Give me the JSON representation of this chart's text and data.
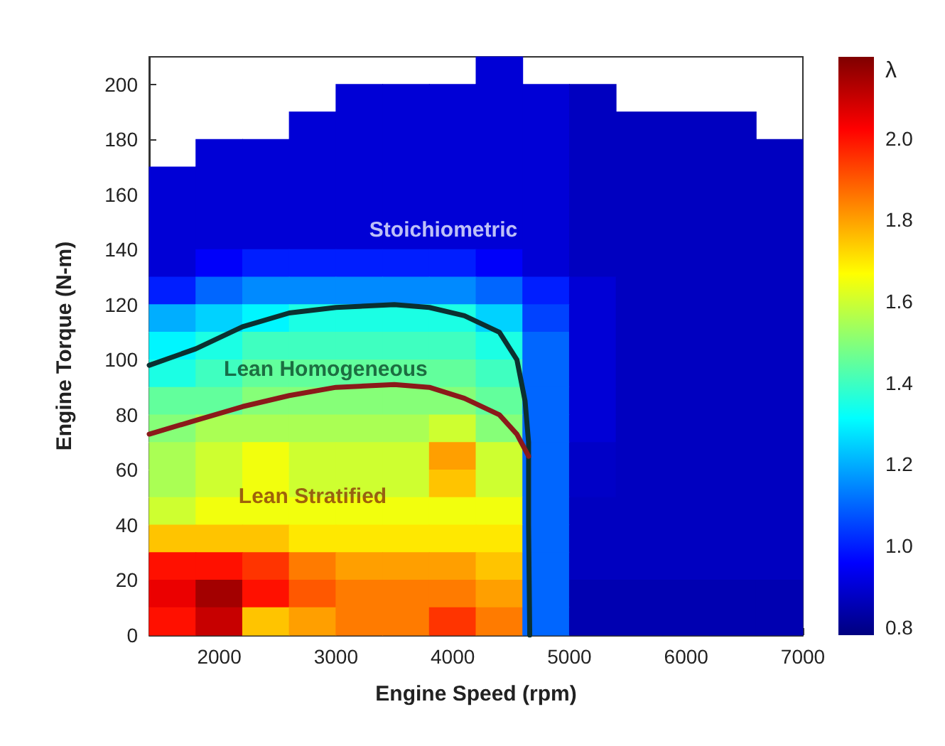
{
  "chart_data": {
    "type": "heatmap",
    "xlabel": "Engine Speed (rpm)",
    "ylabel": "Engine Torque (N-m)",
    "clabel": "λ",
    "xlim": [
      1400,
      7000
    ],
    "xticks": [
      2000,
      3000,
      4000,
      5000,
      6000,
      7000
    ],
    "ylim": [
      0,
      210
    ],
    "yticks": [
      0,
      20,
      40,
      60,
      80,
      100,
      120,
      140,
      160,
      180,
      200
    ],
    "clim": [
      0.78,
      2.2
    ],
    "cticks": [
      0.8,
      {
        "value": 1,
        "label": "1.0"
      },
      1.2,
      1.4,
      1.6,
      1.8,
      {
        "value": 2,
        "label": "2.0"
      }
    ],
    "cells": [
      [
        null,
        null,
        null,
        null,
        null,
        null,
        null,
        0.9,
        null,
        null,
        null,
        null,
        null,
        null
      ],
      [
        null,
        null,
        null,
        null,
        0.9,
        0.9,
        0.9,
        0.9,
        0.9,
        0.87,
        null,
        null,
        null,
        null
      ],
      [
        null,
        null,
        null,
        0.9,
        0.9,
        0.9,
        0.9,
        0.9,
        0.9,
        0.87,
        0.87,
        0.87,
        0.87,
        null
      ],
      [
        null,
        0.9,
        0.9,
        0.9,
        0.9,
        0.9,
        0.9,
        0.9,
        0.9,
        0.87,
        0.87,
        0.87,
        0.87,
        0.87
      ],
      [
        0.9,
        0.9,
        0.9,
        0.9,
        0.9,
        0.9,
        0.9,
        0.9,
        0.9,
        0.87,
        0.87,
        0.87,
        0.87,
        0.87
      ],
      [
        0.9,
        0.9,
        0.9,
        0.9,
        0.9,
        0.9,
        0.9,
        0.9,
        0.9,
        0.87,
        0.87,
        0.87,
        0.87,
        0.87
      ],
      [
        0.9,
        0.9,
        0.9,
        0.9,
        0.9,
        0.9,
        0.9,
        0.9,
        0.9,
        0.87,
        0.87,
        0.87,
        0.87,
        0.87
      ],
      [
        0.9,
        0.95,
        1.0,
        1.0,
        1.0,
        1.0,
        1.0,
        0.95,
        0.9,
        0.87,
        0.87,
        0.87,
        0.87,
        0.87
      ],
      [
        1.0,
        1.1,
        1.15,
        1.15,
        1.15,
        1.15,
        1.15,
        1.1,
        1.0,
        0.9,
        0.87,
        0.87,
        0.87,
        0.87
      ],
      [
        1.2,
        1.25,
        1.3,
        1.35,
        1.35,
        1.35,
        1.35,
        1.25,
        1.05,
        0.9,
        0.87,
        0.87,
        0.87,
        0.87
      ],
      [
        1.3,
        1.35,
        1.4,
        1.4,
        1.4,
        1.4,
        1.4,
        1.35,
        1.1,
        0.9,
        0.87,
        0.87,
        0.87,
        0.87
      ],
      [
        1.35,
        1.4,
        1.45,
        1.45,
        1.45,
        1.45,
        1.45,
        1.4,
        1.1,
        0.9,
        0.87,
        0.87,
        0.87,
        0.87
      ],
      [
        1.45,
        1.45,
        1.5,
        1.5,
        1.5,
        1.5,
        1.5,
        1.45,
        1.1,
        0.9,
        0.87,
        0.87,
        0.87,
        0.87
      ],
      [
        1.5,
        1.55,
        1.55,
        1.55,
        1.55,
        1.55,
        1.6,
        1.5,
        1.1,
        0.9,
        0.87,
        0.87,
        0.87,
        0.87
      ],
      [
        1.55,
        1.6,
        1.65,
        1.6,
        1.6,
        1.6,
        1.8,
        1.6,
        1.1,
        0.88,
        0.87,
        0.87,
        0.87,
        0.87
      ],
      [
        1.55,
        1.6,
        1.65,
        1.6,
        1.6,
        1.6,
        1.75,
        1.6,
        1.1,
        0.88,
        0.87,
        0.87,
        0.87,
        0.87
      ],
      [
        1.6,
        1.65,
        1.65,
        1.65,
        1.65,
        1.65,
        1.65,
        1.65,
        1.1,
        0.87,
        0.87,
        0.87,
        0.87,
        0.87
      ],
      [
        1.75,
        1.75,
        1.75,
        1.7,
        1.7,
        1.7,
        1.7,
        1.7,
        1.1,
        0.87,
        0.87,
        0.87,
        0.87,
        0.87
      ],
      [
        2.0,
        2.0,
        1.95,
        1.85,
        1.8,
        1.8,
        1.8,
        1.75,
        1.1,
        0.87,
        0.87,
        0.87,
        0.87,
        0.87
      ],
      [
        2.05,
        2.15,
        2.0,
        1.9,
        1.85,
        1.85,
        1.85,
        1.8,
        1.1,
        0.85,
        0.85,
        0.85,
        0.85,
        0.85
      ],
      [
        2.0,
        2.1,
        1.75,
        1.8,
        1.85,
        1.85,
        1.95,
        1.85,
        1.1,
        0.85,
        0.85,
        0.85,
        0.85,
        0.85
      ]
    ],
    "series": [
      {
        "type": "line",
        "color": "#0b3030",
        "x": [
          1400,
          1800,
          2200,
          2600,
          3000,
          3500,
          3800,
          4100,
          4400,
          4550,
          4620,
          4650,
          4650,
          4660
        ],
        "values": [
          98,
          104,
          112,
          117,
          119,
          120,
          119,
          116,
          110,
          100,
          85,
          70,
          40,
          0
        ]
      },
      {
        "type": "line",
        "color": "#8b1a1a",
        "x": [
          1400,
          1800,
          2200,
          2600,
          3000,
          3500,
          3800,
          4100,
          4400,
          4550,
          4650
        ],
        "values": [
          73,
          78,
          83,
          87,
          90,
          91,
          90,
          86,
          80,
          73,
          65
        ]
      }
    ],
    "annotations": [
      "Stoichiometric",
      "Lean Homogeneous",
      "Lean Stratified"
    ],
    "grid": false
  }
}
